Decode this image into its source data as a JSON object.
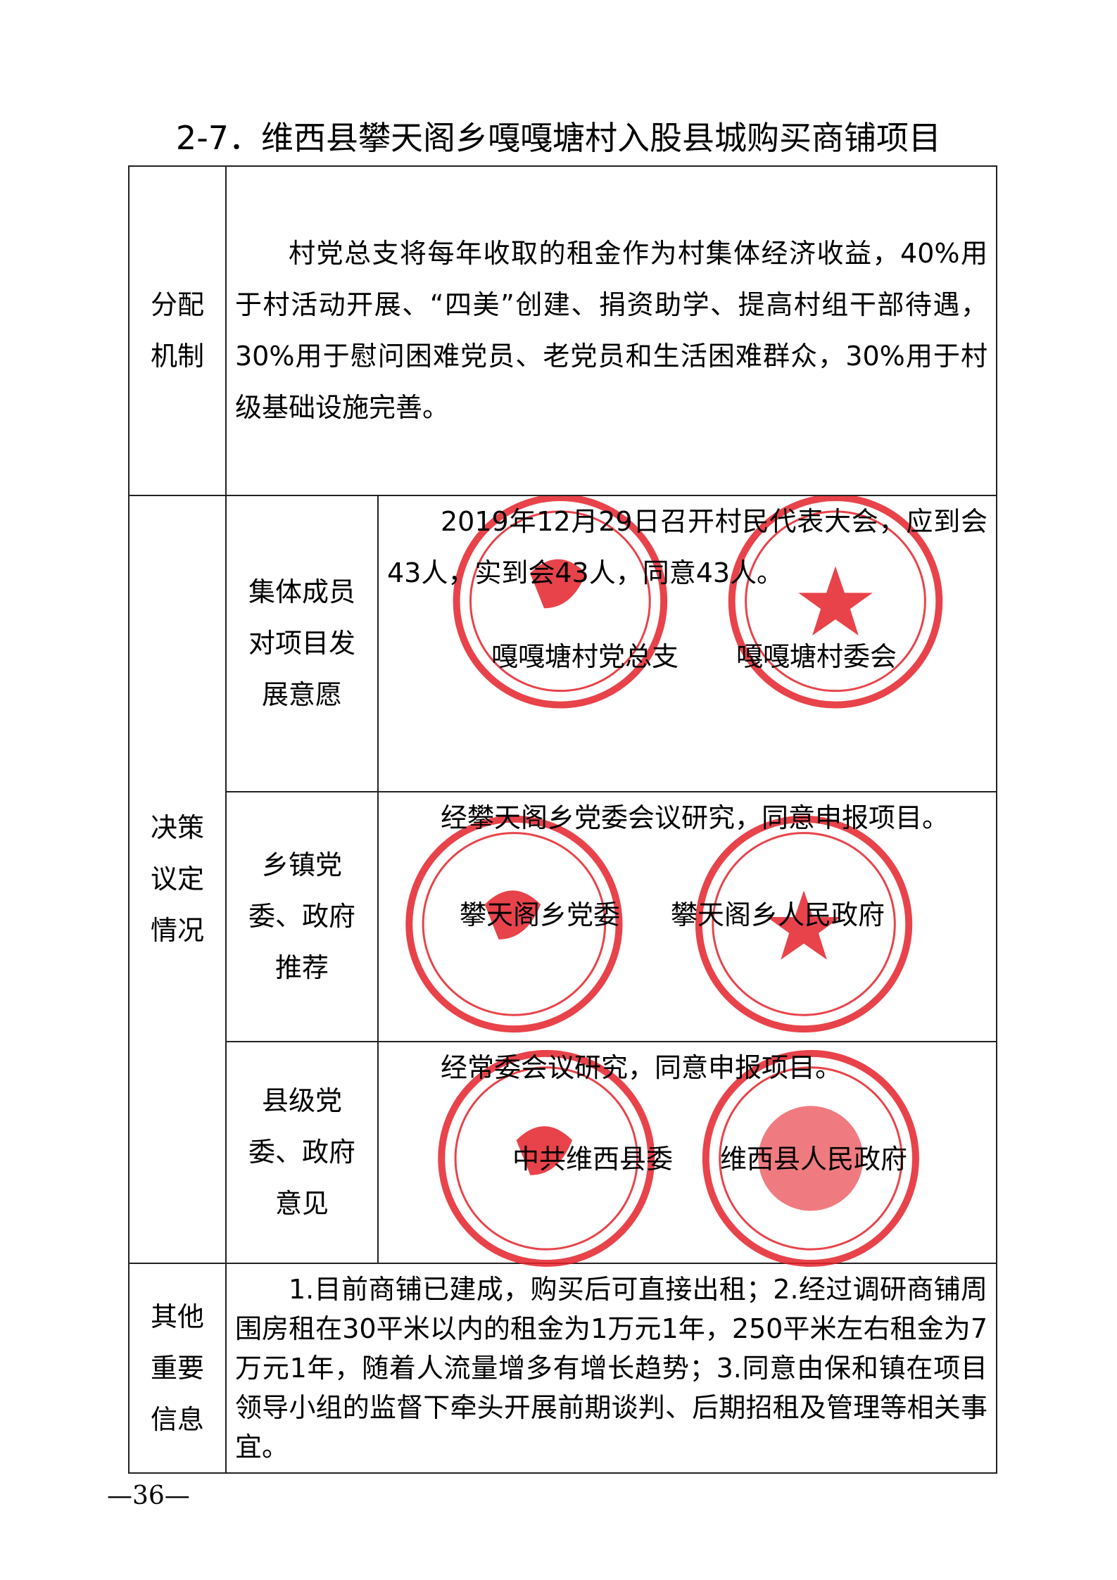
{
  "title": "2-7．维西县攀天阁乡嘎嘎塘村入股县城购买商铺项目",
  "rows": {
    "distribution": {
      "label_1": "分配",
      "label_2": "机制",
      "text_1": "村党总支将每年收取的租金作为村集体经济收益，40%用于村活动开展、“四美”创建、捐资助学、提高村组干部待遇，30%用于慰问困难党员、老党员和生活困难群众，30%用于村级基础设施完善。"
    },
    "decision": {
      "label_1": "决策",
      "label_2": "议定",
      "label_3": "情况",
      "members": {
        "label_1": "集体成员",
        "label_2": "对项目发",
        "label_3": "展意愿",
        "text": "2019年12月29日召开村民代表大会，应到会43人，实到会43人，同意43人。",
        "sign_1": "嘎嘎塘村党总支",
        "sign_2": "嘎嘎塘村委会"
      },
      "township": {
        "label_1": "乡镇党",
        "label_2": "委、政府",
        "label_3": "推荐",
        "text": "经攀天阁乡党委会议研究，同意申报项目。",
        "sign_1": "攀天阁乡党委",
        "sign_2": "攀天阁乡人民政府"
      },
      "county": {
        "label_1": "县级党",
        "label_2": "委、政府",
        "label_3": "意见",
        "text": "经常委会议研究，同意申报项目。",
        "sign_1": "中共维西县委",
        "sign_2": "维西县人民政府"
      }
    },
    "other": {
      "label_1": "其他",
      "label_2": "重要",
      "label_3": "信息",
      "text": "1.目前商铺已建成，购买后可直接出租；2.经过调研商铺周围房租在30平米以内的租金为1万元1年，250平米左右租金为7万元1年，随着人流量增多有增长趋势；3.同意由保和镇在项目领导小组的监督下牵头开展前期谈判、后期招租及管理等相关事宜。"
    }
  },
  "page_number": "—36—",
  "stamp_color": "#e5232b"
}
